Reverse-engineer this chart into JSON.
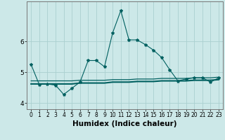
{
  "x": [
    0,
    1,
    2,
    3,
    4,
    5,
    6,
    7,
    8,
    9,
    10,
    11,
    12,
    13,
    14,
    15,
    16,
    17,
    18,
    19,
    20,
    21,
    22,
    23
  ],
  "y_curve": [
    5.25,
    4.6,
    4.62,
    4.58,
    4.28,
    4.48,
    4.68,
    5.38,
    5.38,
    5.18,
    6.28,
    7.0,
    6.05,
    6.05,
    5.9,
    5.72,
    5.48,
    5.08,
    4.72,
    4.78,
    4.82,
    4.82,
    4.68,
    4.82
  ],
  "y_line1": [
    4.72,
    4.72,
    4.72,
    4.72,
    4.72,
    4.72,
    4.74,
    4.74,
    4.74,
    4.74,
    4.76,
    4.76,
    4.76,
    4.78,
    4.78,
    4.78,
    4.8,
    4.8,
    4.8,
    4.8,
    4.82,
    4.82,
    4.82,
    4.84
  ],
  "y_line2": [
    4.62,
    4.62,
    4.62,
    4.62,
    4.62,
    4.62,
    4.65,
    4.65,
    4.65,
    4.65,
    4.68,
    4.68,
    4.68,
    4.7,
    4.7,
    4.7,
    4.72,
    4.72,
    4.72,
    4.72,
    4.74,
    4.74,
    4.74,
    4.76
  ],
  "bg_color": "#cce8e8",
  "grid_color": "#aad0d0",
  "line_color": "#006060",
  "ylim": [
    3.8,
    7.3
  ],
  "xlim": [
    -0.5,
    23.5
  ],
  "yticks": [
    4,
    5,
    6
  ],
  "xticks": [
    0,
    1,
    2,
    3,
    4,
    5,
    6,
    7,
    8,
    9,
    10,
    11,
    12,
    13,
    14,
    15,
    16,
    17,
    18,
    19,
    20,
    21,
    22,
    23
  ],
  "xlabel": "Humidex (Indice chaleur)",
  "xlabel_fontsize": 7.5,
  "tick_fontsize": 5.5,
  "ytick_fontsize": 6.5
}
